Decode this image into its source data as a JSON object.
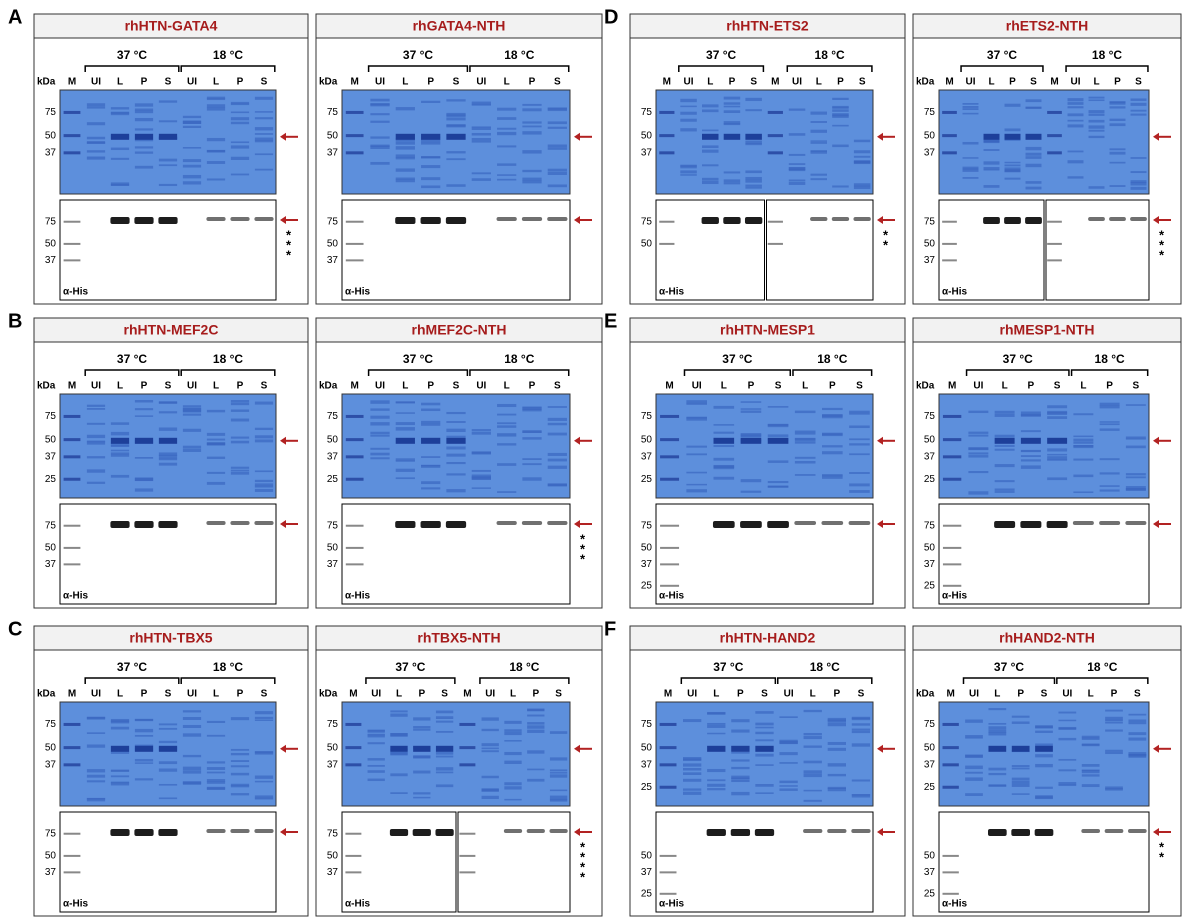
{
  "panels": [
    {
      "letter": "A",
      "blots": [
        {
          "title": "rhHTN-GATA4",
          "temps": [
            "37 °C",
            "18 °C"
          ],
          "units": "kDa",
          "lanes": [
            "M",
            "UI",
            "L",
            "P",
            "S",
            "UI",
            "L",
            "P",
            "S"
          ],
          "gel_markers": [
            75,
            50,
            37
          ],
          "wb_markers": [
            75,
            50,
            37
          ],
          "antibody": "α-His",
          "stars": [
            "*",
            "*",
            "*"
          ]
        },
        {
          "title": "rhGATA4-NTH",
          "temps": [
            "37 °C",
            "18 °C"
          ],
          "units": "kDa",
          "lanes": [
            "M",
            "UI",
            "L",
            "P",
            "S",
            "UI",
            "L",
            "P",
            "S"
          ],
          "gel_markers": [
            75,
            50,
            37
          ],
          "wb_markers": [
            75,
            50,
            37
          ],
          "antibody": "α-His",
          "stars": []
        }
      ]
    },
    {
      "letter": "B",
      "blots": [
        {
          "title": "rhHTN-MEF2C",
          "temps": [
            "37 °C",
            "18 °C"
          ],
          "units": "kDa",
          "lanes": [
            "M",
            "UI",
            "L",
            "P",
            "S",
            "UI",
            "L",
            "P",
            "S"
          ],
          "gel_markers": [
            75,
            50,
            37,
            25
          ],
          "wb_markers": [
            75,
            50,
            37
          ],
          "antibody": "α-His",
          "stars": []
        },
        {
          "title": "rhMEF2C-NTH",
          "temps": [
            "37 °C",
            "18 °C"
          ],
          "units": "kDa",
          "lanes": [
            "M",
            "UI",
            "L",
            "P",
            "S",
            "UI",
            "L",
            "P",
            "S"
          ],
          "gel_markers": [
            75,
            50,
            37,
            25
          ],
          "wb_markers": [
            75,
            50,
            37
          ],
          "antibody": "α-His",
          "stars": [
            "*",
            "*",
            "*"
          ]
        }
      ]
    },
    {
      "letter": "C",
      "blots": [
        {
          "title": "rhHTN-TBX5",
          "temps": [
            "37 °C",
            "18 °C"
          ],
          "units": "kDa",
          "lanes": [
            "M",
            "UI",
            "L",
            "P",
            "S",
            "UI",
            "L",
            "P",
            "S"
          ],
          "gel_markers": [
            75,
            50,
            37
          ],
          "wb_markers": [
            75,
            50,
            37
          ],
          "antibody": "α-His",
          "stars": []
        },
        {
          "title": "rhTBX5-NTH",
          "temps": [
            "37 °C",
            "18 °C"
          ],
          "units": "kDa",
          "lanes": [
            "M",
            "UI",
            "L",
            "P",
            "S",
            "M",
            "UI",
            "L",
            "P",
            "S"
          ],
          "gel_markers": [
            75,
            50,
            37
          ],
          "wb_markers": [
            75,
            50,
            37
          ],
          "antibody": "α-His",
          "stars": [
            "*",
            "*",
            "*",
            "*"
          ],
          "wb_split": true
        }
      ]
    },
    {
      "letter": "D",
      "blots": [
        {
          "title": "rhHTN-ETS2",
          "temps": [
            "37 °C",
            "18 °C"
          ],
          "lanes": [
            "M",
            "UI",
            "L",
            "P",
            "S",
            "M",
            "UI",
            "L",
            "P",
            "S"
          ],
          "gel_markers": [
            75,
            50,
            37
          ],
          "wb_markers": [
            75,
            50
          ],
          "antibody": "α-His",
          "stars": [
            "*",
            "*"
          ],
          "wb_split": true
        },
        {
          "title": "rhETS2-NTH",
          "temps": [
            "37 °C",
            "18 °C"
          ],
          "units": "kDa",
          "lanes": [
            "M",
            "UI",
            "L",
            "P",
            "S",
            "M",
            "UI",
            "L",
            "P",
            "S"
          ],
          "gel_markers": [
            75,
            50,
            37
          ],
          "wb_markers": [
            75,
            50,
            37
          ],
          "antibody": "α-His",
          "stars": [
            "*",
            "*",
            "*"
          ],
          "wb_split": true
        }
      ]
    },
    {
      "letter": "E",
      "blots": [
        {
          "title": "rhHTN-MESP1",
          "temps": [
            "37 °C",
            "18 °C"
          ],
          "lanes": [
            "M",
            "UI",
            "L",
            "P",
            "S",
            "L",
            "P",
            "S"
          ],
          "gel_markers": [
            75,
            50,
            37,
            25
          ],
          "wb_markers": [
            75,
            50,
            37,
            25
          ],
          "antibody": "α-His",
          "stars": []
        },
        {
          "title": "rhMESP1-NTH",
          "temps": [
            "37 °C",
            "18 °C"
          ],
          "units": "kDa",
          "lanes": [
            "M",
            "UI",
            "L",
            "P",
            "S",
            "L",
            "P",
            "S"
          ],
          "gel_markers": [
            75,
            50,
            37,
            25
          ],
          "wb_markers": [
            75,
            50,
            37,
            25
          ],
          "antibody": "α-His",
          "stars": []
        }
      ]
    },
    {
      "letter": "F",
      "blots": [
        {
          "title": "rhHTN-HAND2",
          "temps": [
            "37 °C",
            "18 °C"
          ],
          "lanes": [
            "M",
            "UI",
            "L",
            "P",
            "S",
            "UI",
            "L",
            "P",
            "S"
          ],
          "gel_markers": [
            75,
            50,
            37,
            25
          ],
          "wb_markers": [
            50,
            37,
            25
          ],
          "antibody": "α-His",
          "stars": []
        },
        {
          "title": "rhHAND2-NTH",
          "temps": [
            "37 °C",
            "18 °C"
          ],
          "units": "kDa",
          "lanes": [
            "M",
            "UI",
            "L",
            "P",
            "S",
            "UI",
            "L",
            "P",
            "S"
          ],
          "gel_markers": [
            75,
            50,
            37,
            25
          ],
          "wb_markers": [
            50,
            37,
            25
          ],
          "antibody": "α-His",
          "stars": [
            "*",
            "*"
          ]
        }
      ]
    }
  ]
}
